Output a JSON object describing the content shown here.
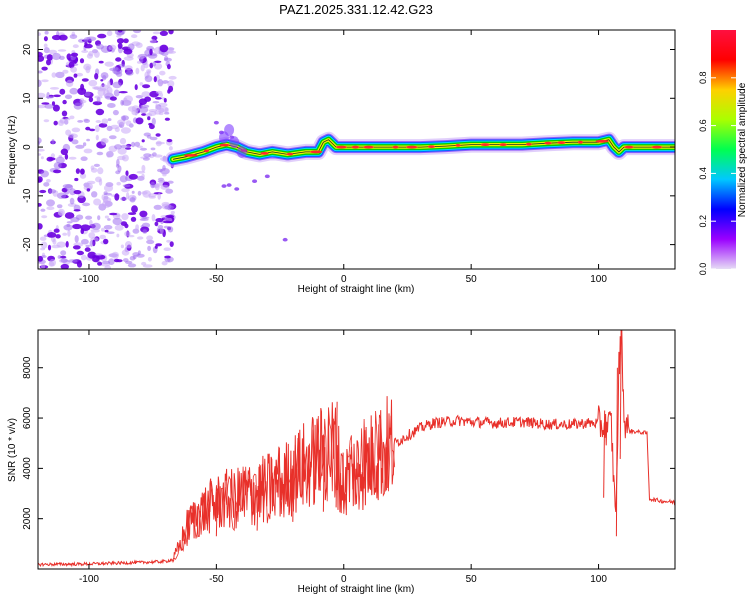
{
  "title": "PAZ1.2025.331.12.42.G23",
  "colors": {
    "snr_line": "#e8302a",
    "frame": "#000000",
    "track_core": "#ff2a2a",
    "track_mid": "#f0f000",
    "track_outer": "#00d000",
    "track_edge": "#0060ff",
    "blob_dark": "#6a00e0",
    "blob_light": "#c8a8f8"
  },
  "chart_data": [
    {
      "type": "heatmap",
      "xlabel": "Height of straight line (km)",
      "ylabel": "Frequency (Hz)",
      "xlim": [
        -120,
        130
      ],
      "ylim": [
        -25,
        24
      ],
      "xticks": [
        -100,
        -50,
        0,
        50,
        100
      ],
      "yticks": [
        -20,
        -10,
        0,
        10,
        20
      ],
      "noise_region_x": [
        -120,
        -67
      ],
      "track": {
        "x": [
          -67,
          -62,
          -55,
          -50,
          -46,
          -42,
          -38,
          -33,
          -28,
          -22,
          -15,
          -10,
          -8,
          -6,
          -3,
          0,
          10,
          20,
          30,
          40,
          50,
          60,
          70,
          80,
          90,
          100,
          104,
          106,
          108,
          110,
          120,
          130
        ],
        "freq": [
          -2.5,
          -2,
          -1,
          0,
          0.5,
          0,
          -1,
          -1.5,
          -1,
          -1.5,
          -1,
          -1,
          1,
          1.5,
          0,
          0,
          0,
          0,
          0,
          0.2,
          0.5,
          0.5,
          0.5,
          0.8,
          1,
          1,
          1.5,
          0,
          -1,
          0,
          0,
          0
        ]
      }
    },
    {
      "type": "colorbar",
      "label": "Normalized spectral amplitude",
      "range": [
        0,
        1
      ],
      "ticks": [
        "0.0",
        "0.2",
        "0.4",
        "0.6",
        "0.8"
      ],
      "tick_values": [
        0,
        0.2,
        0.4,
        0.6,
        0.8
      ],
      "stops": [
        "#e6dcf5",
        "#9a00ff",
        "#0000ff",
        "#00c8ff",
        "#00ff50",
        "#aaff00",
        "#ffd000",
        "#ff0000",
        "#ff1040"
      ]
    },
    {
      "type": "line",
      "xlabel": "Height of straight line (km)",
      "ylabel": "SNR (10 * v/v)",
      "xlim": [
        -120,
        130
      ],
      "ylim": [
        0,
        9500
      ],
      "xticks": [
        -100,
        -50,
        0,
        50,
        100
      ],
      "yticks": [
        2000,
        4000,
        6000,
        8000
      ],
      "x": [
        -120,
        -100,
        -80,
        -70,
        -67,
        -64,
        -62,
        -58,
        -54,
        -50,
        -46,
        -42,
        -38,
        -34,
        -30,
        -26,
        -22,
        -18,
        -14,
        -10,
        -6,
        -3,
        -1,
        0,
        5,
        10,
        15,
        20,
        25,
        30,
        35,
        40,
        45,
        50,
        60,
        70,
        80,
        90,
        95,
        100,
        103,
        105,
        106,
        107,
        108,
        109,
        110,
        112,
        115,
        119,
        120,
        122,
        125,
        130
      ],
      "y": [
        180,
        200,
        260,
        300,
        380,
        1000,
        1600,
        2100,
        2400,
        2600,
        2750,
        2800,
        2950,
        3050,
        3200,
        3400,
        3600,
        3900,
        4200,
        4400,
        4700,
        4900,
        3200,
        3500,
        4000,
        4300,
        4700,
        5000,
        5300,
        5600,
        5800,
        5850,
        5900,
        5850,
        5800,
        5850,
        5750,
        5750,
        5800,
        5800,
        5600,
        5800,
        3300,
        2600,
        8000,
        9500,
        6000,
        5500,
        5450,
        5400,
        2800,
        2750,
        2700,
        2650
      ],
      "spikes": [
        {
          "x": -50,
          "y": 3200
        },
        {
          "x": -34,
          "y": 3300
        },
        {
          "x": -20,
          "y": 4700
        },
        {
          "x": -8,
          "y": 5300
        },
        {
          "x": -3,
          "y": 6650
        },
        {
          "x": 102,
          "y": 6300
        },
        {
          "x": 107,
          "y": 8000
        },
        {
          "x": 108.5,
          "y": 9600
        }
      ]
    }
  ]
}
